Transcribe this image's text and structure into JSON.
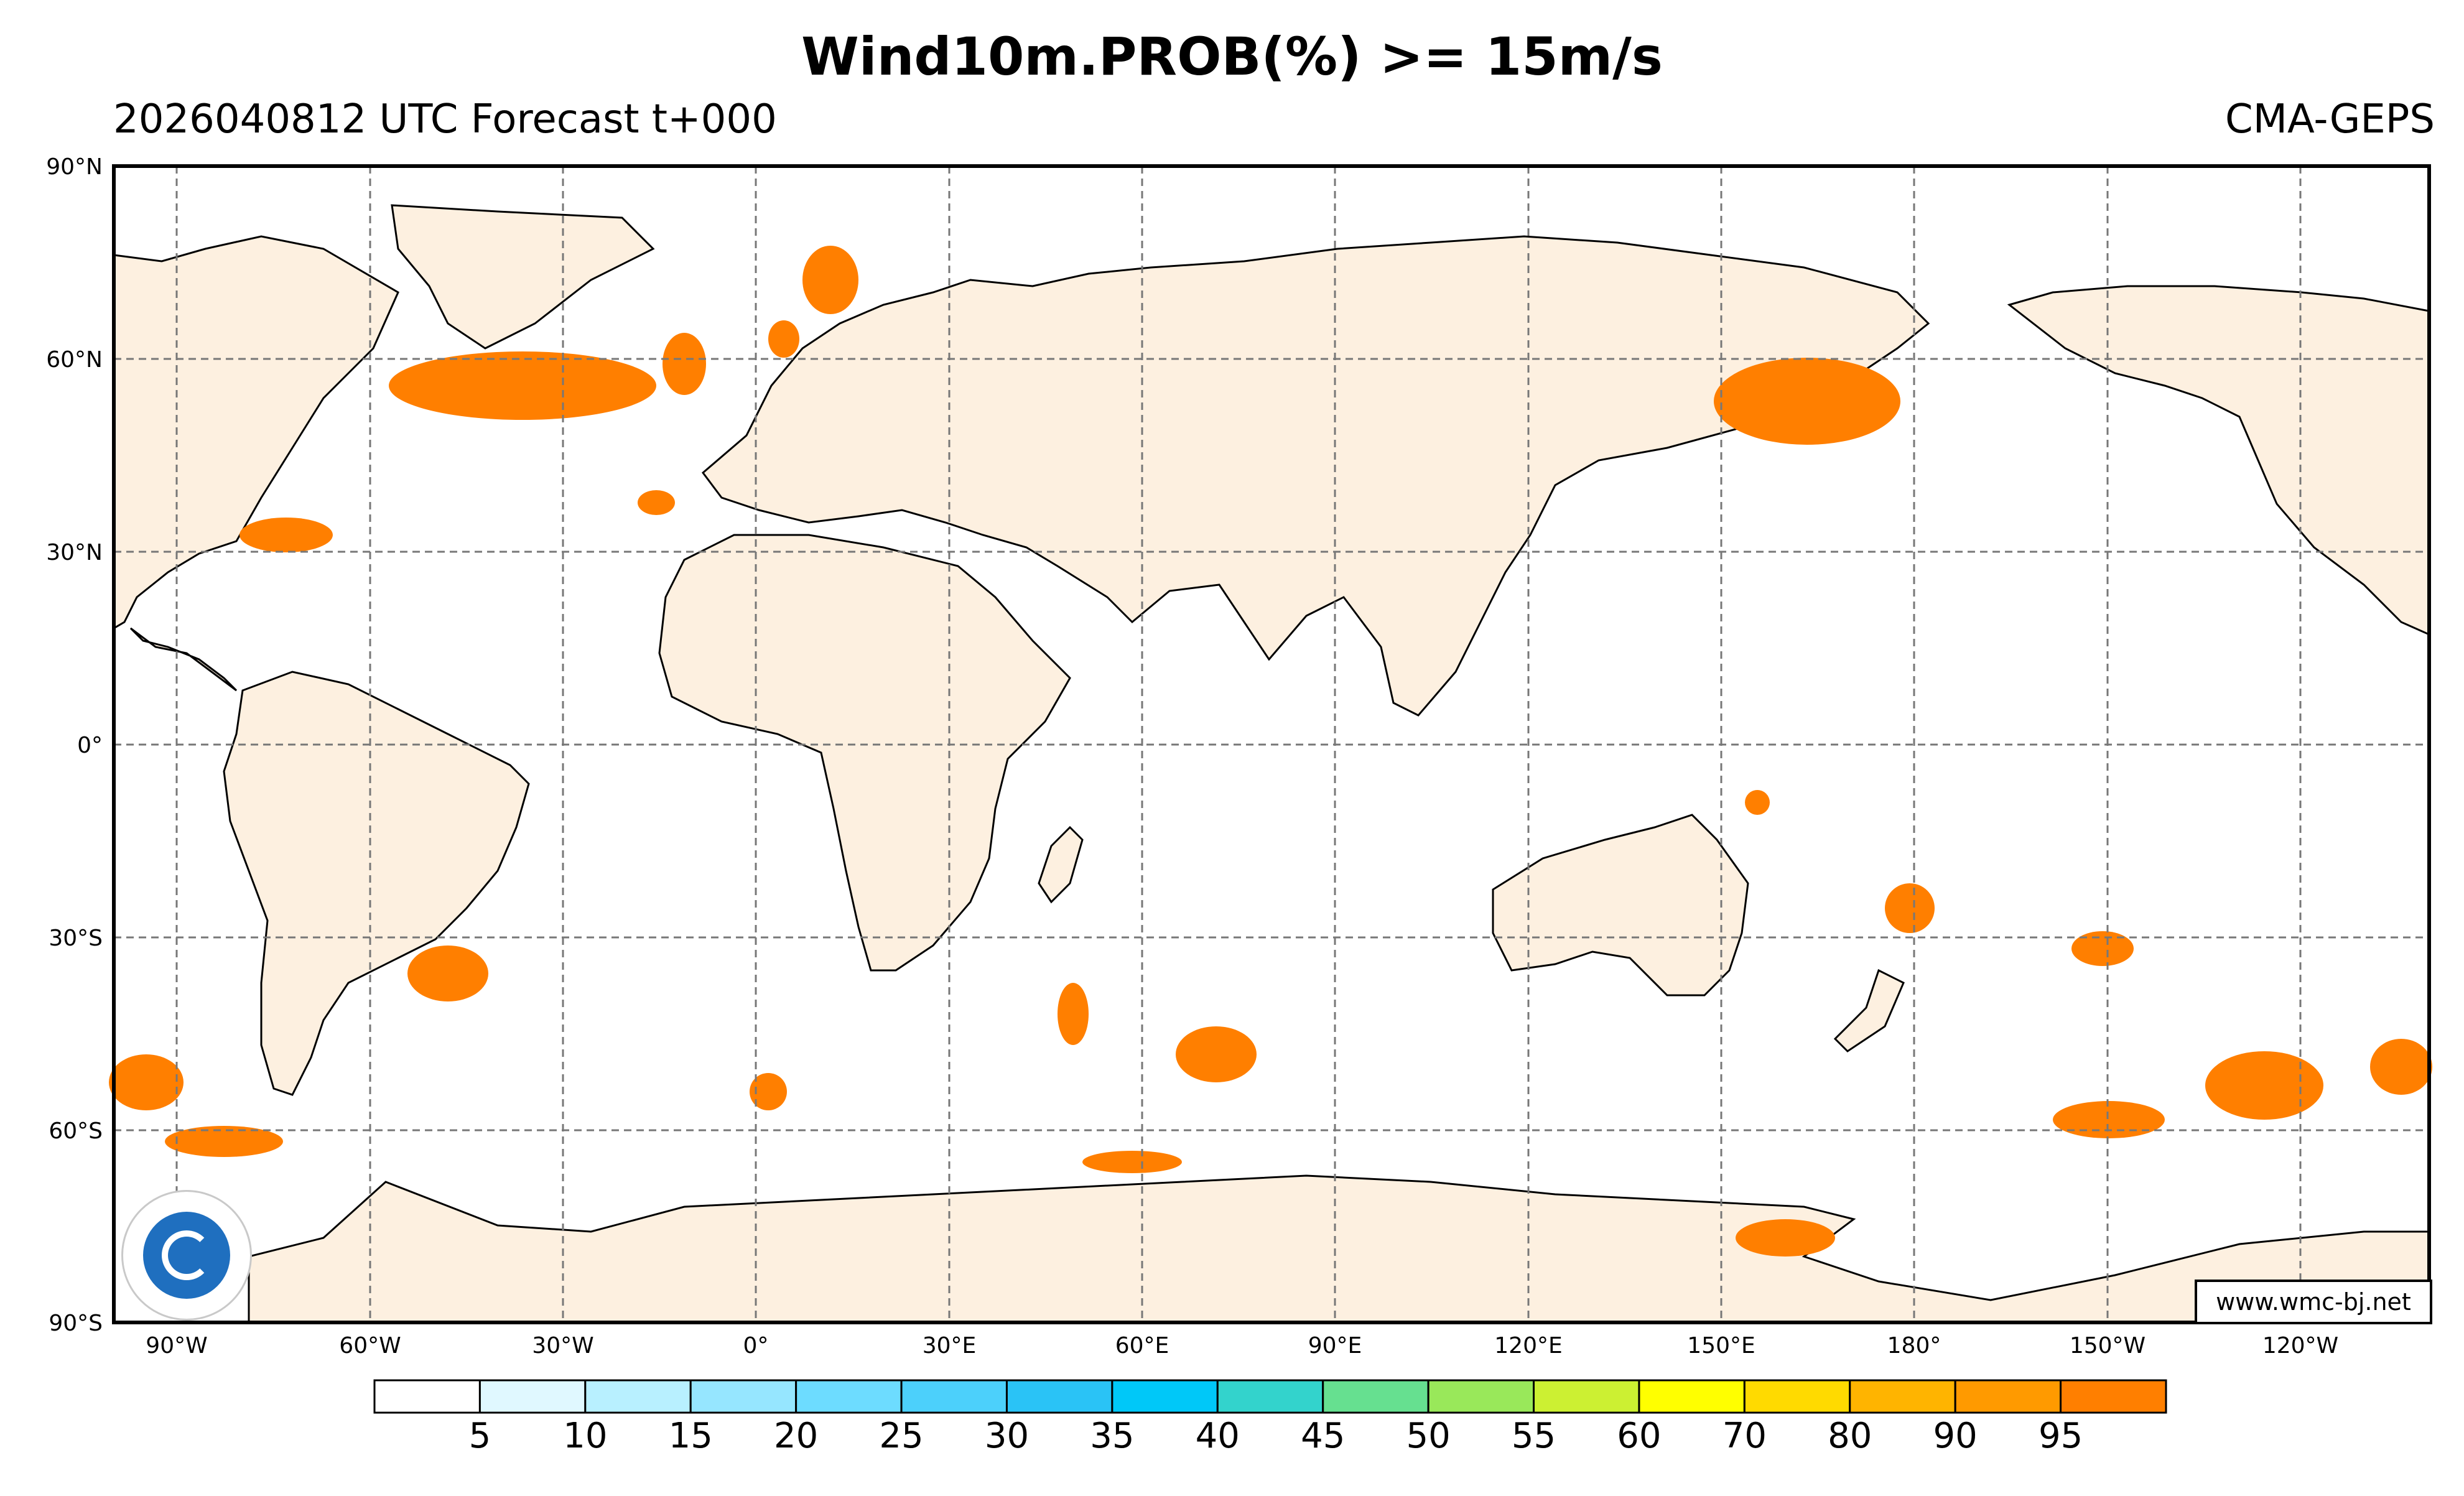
{
  "header": {
    "title": "Wind10m.PROB(%) >= 15m/s",
    "run_info": "2026040812 UTC Forecast t+000",
    "model": "CMA-GEPS"
  },
  "map": {
    "lat_labels": [
      "90°N",
      "60°N",
      "30°N",
      "0°",
      "30°S",
      "60°S",
      "90°S"
    ],
    "lon_labels": [
      "90°W",
      "60°W",
      "30°W",
      "0°",
      "30°E",
      "60°E",
      "90°E",
      "120°E",
      "150°E",
      "180°",
      "150°W",
      "120°W"
    ],
    "land_color": "#fdf0e0",
    "ocean_color": "#ffffff",
    "wind_color": "#ff7f00",
    "gridline_color": "#777777"
  },
  "colorbar": {
    "ticks": [
      "5",
      "10",
      "15",
      "20",
      "25",
      "30",
      "35",
      "40",
      "45",
      "50",
      "55",
      "60",
      "70",
      "80",
      "90",
      "95"
    ],
    "colors": [
      "#ffffff",
      "#e0f8ff",
      "#b8f0ff",
      "#96e6ff",
      "#6ddcff",
      "#4cd0fb",
      "#2ac3f6",
      "#00c8f8",
      "#33d3cc",
      "#66e090",
      "#99e85a",
      "#ccf032",
      "#ffff00",
      "#ffda00",
      "#ffb400",
      "#ff9a00",
      "#ff7f00"
    ]
  },
  "credit": {
    "url": "www.wmc-bj.net"
  },
  "logo": {
    "name": "China Meteorological Administration"
  }
}
